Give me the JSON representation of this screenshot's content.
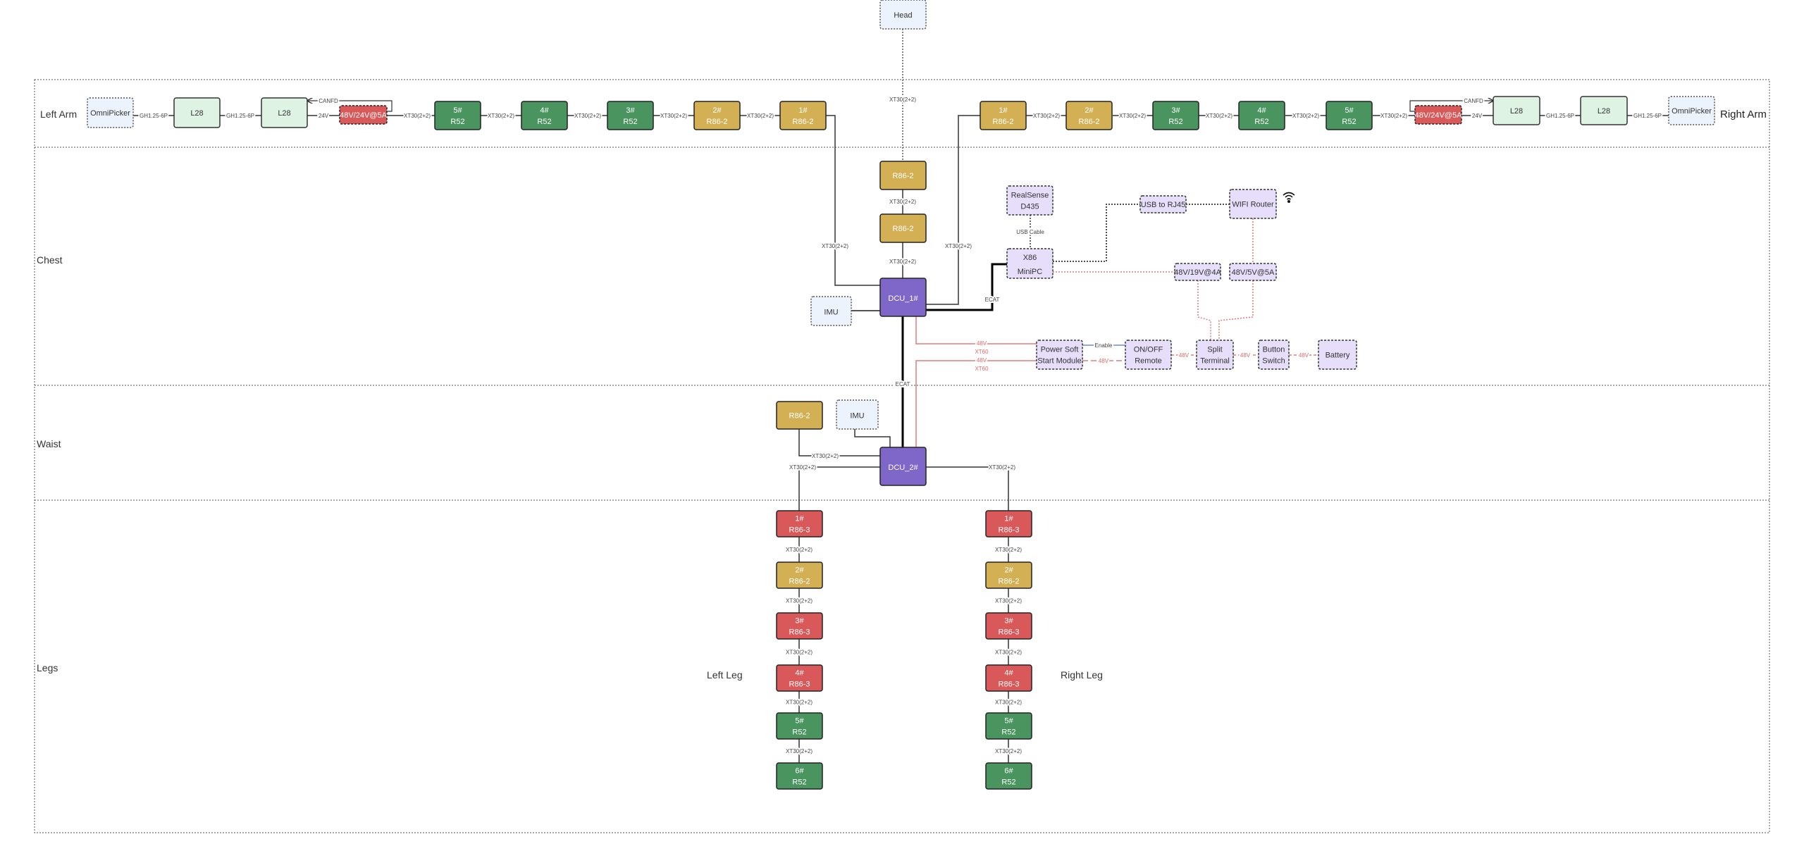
{
  "colors": {
    "r52_green": "#4a955f",
    "r86_2_gold": "#d4b054",
    "r86_3_red": "#d9595a",
    "dcu_purple": "#7f67c9",
    "l28_light_green": "#dff3e4",
    "sensor_light_blue": "#edf3fc",
    "peripheral_lavender": "#e6defa",
    "power_wire": "#e07b7b",
    "enable_wire": "#6a8fd0",
    "ecat_wire": "#000000"
  },
  "sections": [
    {
      "id": "arms",
      "label": "Left Arm"
    },
    {
      "id": "chest",
      "label": "Chest"
    },
    {
      "id": "waist",
      "label": "Waist"
    },
    {
      "id": "legs",
      "label": "Legs"
    }
  ],
  "side_labels": {
    "right_arm": "Right Arm",
    "left_leg": "Left Leg",
    "right_leg": "Right Leg"
  },
  "nodes": [
    {
      "id": "head",
      "kind": "sensor",
      "lines": [
        "Head"
      ]
    },
    {
      "id": "la_omni",
      "kind": "sensor",
      "lines": [
        "OmniPicker"
      ]
    },
    {
      "id": "la_l28a",
      "kind": "l28",
      "lines": [
        "L28"
      ]
    },
    {
      "id": "la_l28b",
      "kind": "l28",
      "lines": [
        "L28"
      ]
    },
    {
      "id": "la_psu",
      "kind": "psu",
      "lines": [
        "48V/24V@5A"
      ]
    },
    {
      "id": "la_5",
      "kind": "r52",
      "lines": [
        "5#",
        "R52"
      ]
    },
    {
      "id": "la_4",
      "kind": "r52",
      "lines": [
        "4#",
        "R52"
      ]
    },
    {
      "id": "la_3",
      "kind": "r52",
      "lines": [
        "3#",
        "R52"
      ]
    },
    {
      "id": "la_2",
      "kind": "r862",
      "lines": [
        "2#",
        "R86-2"
      ]
    },
    {
      "id": "la_1",
      "kind": "r862",
      "lines": [
        "1#",
        "R86-2"
      ]
    },
    {
      "id": "ra_1",
      "kind": "r862",
      "lines": [
        "1#",
        "R86-2"
      ]
    },
    {
      "id": "ra_2",
      "kind": "r862",
      "lines": [
        "2#",
        "R86-2"
      ]
    },
    {
      "id": "ra_3",
      "kind": "r52",
      "lines": [
        "3#",
        "R52"
      ]
    },
    {
      "id": "ra_4",
      "kind": "r52",
      "lines": [
        "4#",
        "R52"
      ]
    },
    {
      "id": "ra_5",
      "kind": "r52",
      "lines": [
        "5#",
        "R52"
      ]
    },
    {
      "id": "ra_psu",
      "kind": "psu",
      "lines": [
        "48V/24V@5A"
      ]
    },
    {
      "id": "ra_l28a",
      "kind": "l28",
      "lines": [
        "L28"
      ]
    },
    {
      "id": "ra_l28b",
      "kind": "l28",
      "lines": [
        "L28"
      ]
    },
    {
      "id": "ra_omni",
      "kind": "sensor",
      "lines": [
        "OmniPicker"
      ]
    },
    {
      "id": "neck_1",
      "kind": "r862",
      "lines": [
        "R86-2"
      ]
    },
    {
      "id": "neck_2",
      "kind": "r862",
      "lines": [
        "R86-2"
      ]
    },
    {
      "id": "dcu1",
      "kind": "dcu",
      "lines": [
        "DCU_1#"
      ]
    },
    {
      "id": "imu1",
      "kind": "sensor",
      "lines": [
        "IMU"
      ]
    },
    {
      "id": "realsense",
      "kind": "periph",
      "lines": [
        "RealSense",
        "D435"
      ]
    },
    {
      "id": "x86",
      "kind": "periph",
      "lines": [
        "X86",
        "MiniPC"
      ]
    },
    {
      "id": "usbrj45",
      "kind": "periph",
      "lines": [
        "USB to RJ45"
      ]
    },
    {
      "id": "wifi",
      "kind": "periph",
      "lines": [
        "WIFI Router"
      ]
    },
    {
      "id": "dc19",
      "kind": "periph",
      "lines": [
        "48V/19V@4A"
      ]
    },
    {
      "id": "dc5",
      "kind": "periph",
      "lines": [
        "48V/5V@5A"
      ]
    },
    {
      "id": "softstart",
      "kind": "periph",
      "lines": [
        "Power Soft",
        "Start Module"
      ]
    },
    {
      "id": "onoff",
      "kind": "periph",
      "lines": [
        "ON/OFF",
        "Remote"
      ]
    },
    {
      "id": "split",
      "kind": "periph",
      "lines": [
        "Split",
        "Terminal"
      ]
    },
    {
      "id": "button",
      "kind": "periph",
      "lines": [
        "Button",
        "Switch"
      ]
    },
    {
      "id": "battery",
      "kind": "periph",
      "lines": [
        "Battery"
      ]
    },
    {
      "id": "waist_r86",
      "kind": "r862",
      "lines": [
        "R86-2"
      ]
    },
    {
      "id": "imu2",
      "kind": "sensor",
      "lines": [
        "IMU"
      ]
    },
    {
      "id": "dcu2",
      "kind": "dcu",
      "lines": [
        "DCU_2#"
      ]
    },
    {
      "id": "ll_1",
      "kind": "r863",
      "lines": [
        "1#",
        "R86-3"
      ]
    },
    {
      "id": "ll_2",
      "kind": "r862",
      "lines": [
        "2#",
        "R86-2"
      ]
    },
    {
      "id": "ll_3",
      "kind": "r863",
      "lines": [
        "3#",
        "R86-3"
      ]
    },
    {
      "id": "ll_4",
      "kind": "r863",
      "lines": [
        "4#",
        "R86-3"
      ]
    },
    {
      "id": "ll_5",
      "kind": "r52",
      "lines": [
        "5#",
        "R52"
      ]
    },
    {
      "id": "ll_6",
      "kind": "r52",
      "lines": [
        "6#",
        "R52"
      ]
    },
    {
      "id": "rl_1",
      "kind": "r863",
      "lines": [
        "1#",
        "R86-3"
      ]
    },
    {
      "id": "rl_2",
      "kind": "r862",
      "lines": [
        "2#",
        "R86-2"
      ]
    },
    {
      "id": "rl_3",
      "kind": "r863",
      "lines": [
        "3#",
        "R86-3"
      ]
    },
    {
      "id": "rl_4",
      "kind": "r863",
      "lines": [
        "4#",
        "R86-3"
      ]
    },
    {
      "id": "rl_5",
      "kind": "r52",
      "lines": [
        "5#",
        "R52"
      ]
    },
    {
      "id": "rl_6",
      "kind": "r52",
      "lines": [
        "6#",
        "R52"
      ]
    }
  ],
  "edge_labels": [
    {
      "id": "la_gh1",
      "text": "GH1.25-6P"
    },
    {
      "id": "la_gh2",
      "text": "GH1.25-6P"
    },
    {
      "id": "la_24v",
      "text": "24V"
    },
    {
      "id": "la_canfd",
      "text": "CANFD"
    },
    {
      "id": "la_x1",
      "text": "XT30(2+2)"
    },
    {
      "id": "la_x2",
      "text": "XT30(2+2)"
    },
    {
      "id": "la_x3",
      "text": "XT30(2+2)"
    },
    {
      "id": "la_x4",
      "text": "XT30(2+2)"
    },
    {
      "id": "la_x5",
      "text": "XT30(2+2)"
    },
    {
      "id": "ra_x1",
      "text": "XT30(2+2)"
    },
    {
      "id": "ra_x2",
      "text": "XT30(2+2)"
    },
    {
      "id": "ra_x3",
      "text": "XT30(2+2)"
    },
    {
      "id": "ra_x4",
      "text": "XT30(2+2)"
    },
    {
      "id": "ra_x5",
      "text": "XT30(2+2)"
    },
    {
      "id": "ra_24v",
      "text": "24V"
    },
    {
      "id": "ra_canfd",
      "text": "CANFD"
    },
    {
      "id": "ra_gh1",
      "text": "GH1.25-6P"
    },
    {
      "id": "ra_gh2",
      "text": "GH1.25-6P"
    },
    {
      "id": "head_x",
      "text": "XT30(2+2)"
    },
    {
      "id": "neck_x1",
      "text": "XT30(2+2)"
    },
    {
      "id": "neck_x2",
      "text": "XT30(2+2)"
    },
    {
      "id": "larm_x",
      "text": "XT30(2+2)"
    },
    {
      "id": "rarm_x",
      "text": "XT30(2+2)"
    },
    {
      "id": "usb_cable",
      "text": "USB Cable"
    },
    {
      "id": "ecat1",
      "text": "ECAT"
    },
    {
      "id": "p1_v",
      "text": "48V",
      "red": true
    },
    {
      "id": "p1_c",
      "text": "XT60",
      "red": true
    },
    {
      "id": "p2_v",
      "text": "48V",
      "red": true
    },
    {
      "id": "p2_c",
      "text": "XT60",
      "red": true
    },
    {
      "id": "enable",
      "text": "Enable"
    },
    {
      "id": "ss_48v",
      "text": "48V",
      "red": true
    },
    {
      "id": "on_48v",
      "text": "48V",
      "red": true
    },
    {
      "id": "sp_48v",
      "text": "48V",
      "red": true
    },
    {
      "id": "bt_48v",
      "text": "48V",
      "red": true
    },
    {
      "id": "ecat2",
      "text": "ECAT"
    },
    {
      "id": "w_x1",
      "text": "XT30(2+2)"
    },
    {
      "id": "w_x2",
      "text": "XT30(2+2)"
    },
    {
      "id": "w_x3",
      "text": "XT30(2+2)"
    },
    {
      "id": "ll_x1",
      "text": "XT30(2+2)"
    },
    {
      "id": "ll_x2",
      "text": "XT30(2+2)"
    },
    {
      "id": "ll_x3",
      "text": "XT30(2+2)"
    },
    {
      "id": "ll_x4",
      "text": "XT30(2+2)"
    },
    {
      "id": "ll_x5",
      "text": "XT30(2+2)"
    },
    {
      "id": "rl_x1",
      "text": "XT30(2+2)"
    },
    {
      "id": "rl_x2",
      "text": "XT30(2+2)"
    },
    {
      "id": "rl_x3",
      "text": "XT30(2+2)"
    },
    {
      "id": "rl_x4",
      "text": "XT30(2+2)"
    },
    {
      "id": "rl_x5",
      "text": "XT30(2+2)"
    }
  ],
  "icons": {
    "wifi": "wifi-icon",
    "arrow": "arrow-icon"
  }
}
